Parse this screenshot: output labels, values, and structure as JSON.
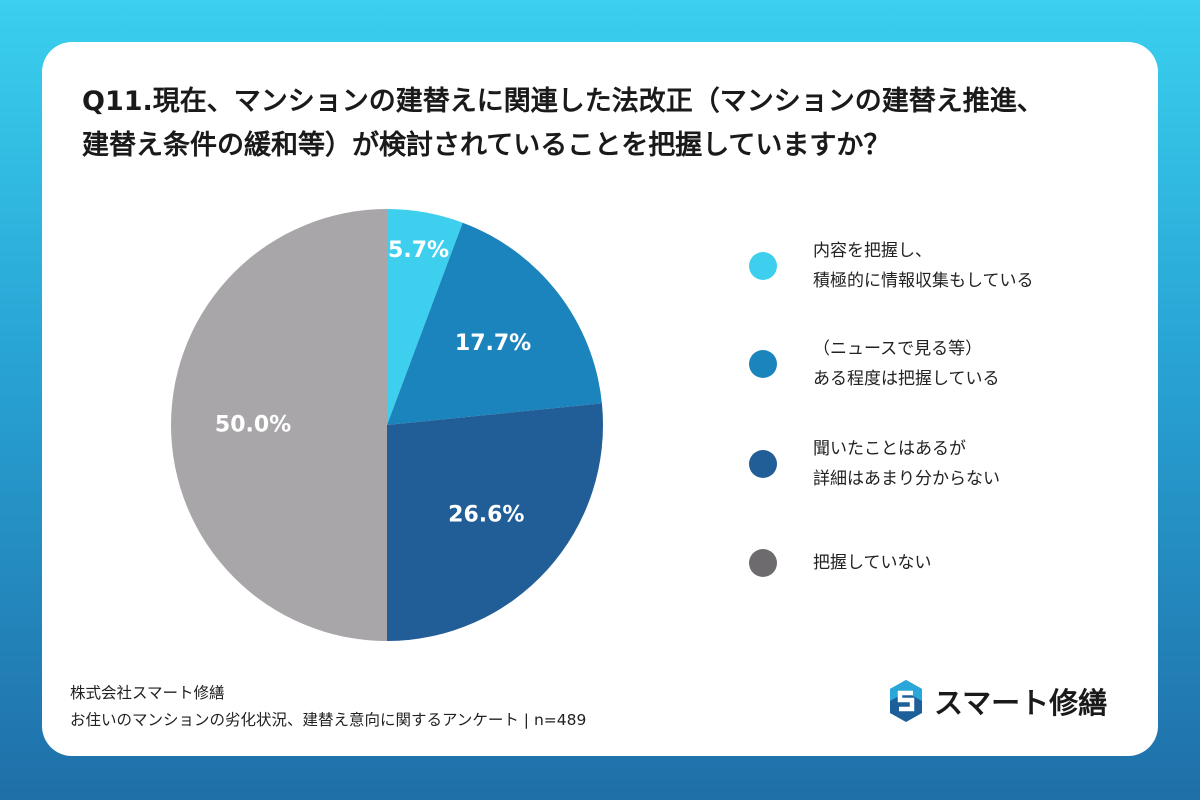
{
  "title_lines": [
    "Q11.現在、マンションの建替えに関連した法改正（マンションの建替え推進、",
    "建替え条件の緩和等）が検討されていることを把握していますか？"
  ],
  "chart_data": {
    "type": "pie",
    "title": "Q11.現在、マンションの建替えに関連した法改正（マンションの建替え推進、建替え条件の緩和等）が検討されていることを把握していますか？",
    "unit": "%",
    "start": "top",
    "direction": "clockwise",
    "slices": [
      {
        "value": 5.7,
        "label": "5.7%",
        "legend": [
          "内容を把握し、",
          "積極的に情報収集もしている"
        ],
        "color": "#3ecfef",
        "legend_color": "#3ecfef"
      },
      {
        "value": 17.7,
        "label": "17.7%",
        "legend": [
          "（ニュースで見る等）",
          "ある程度は把握している"
        ],
        "color": "#1b84bc",
        "legend_color": "#1b84bc"
      },
      {
        "value": 26.6,
        "label": "26.6%",
        "legend": [
          "聞いたことはあるが",
          "詳細はあまり分からない"
        ],
        "color": "#215d96",
        "legend_color": "#215d96"
      },
      {
        "value": 50.0,
        "label": "50.0%",
        "legend": [
          "把握していない"
        ],
        "color": "#a9a6aa",
        "legend_color": "#6d6b6e"
      }
    ]
  },
  "source": {
    "line1": "株式会社スマート修繕",
    "line2": "お住いのマンションの劣化状況、建替え意向に関するアンケート | n=489"
  },
  "brand": {
    "name": "スマート修繕",
    "logo_icon": "s-shield-logo-icon",
    "logo_colors": [
      "#1d5f99",
      "#2aa7d9"
    ]
  }
}
